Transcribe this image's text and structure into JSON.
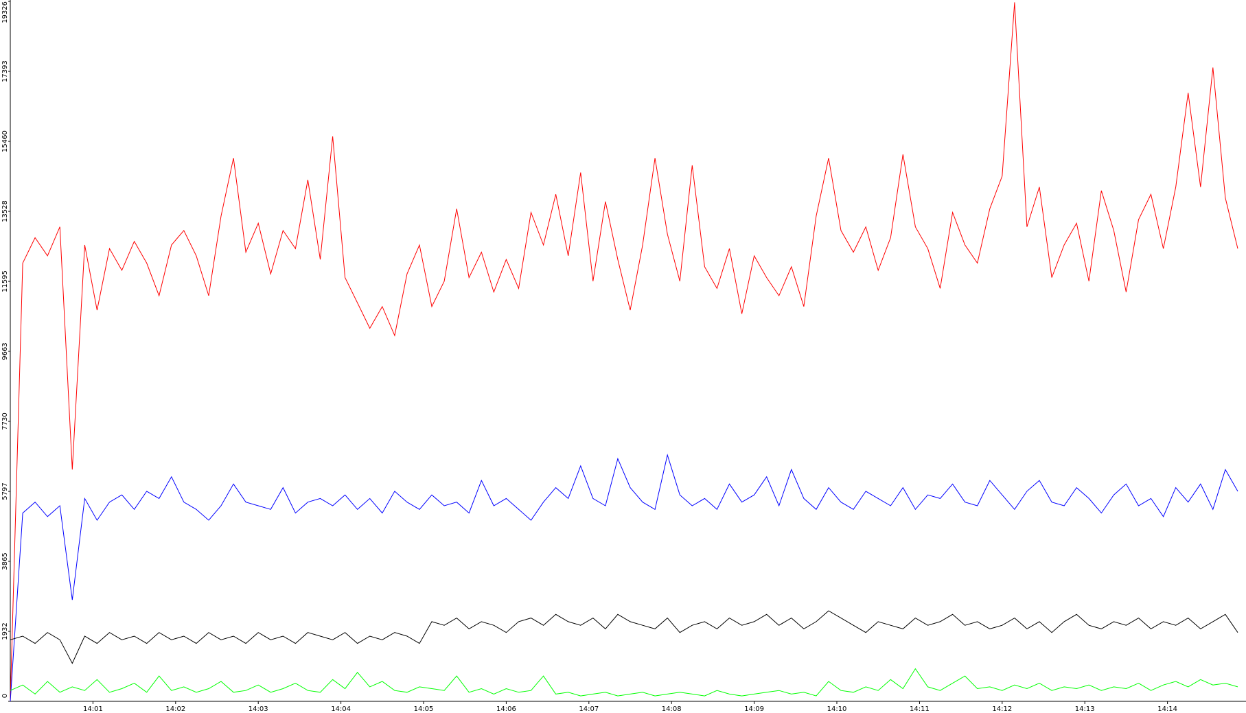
{
  "chart_data": {
    "type": "line",
    "x": [
      0,
      0.15,
      0.3,
      0.45,
      0.6,
      0.75,
      0.9,
      1.05,
      1.2,
      1.35,
      1.5,
      1.65,
      1.8,
      1.95,
      2.1,
      2.25,
      2.4,
      2.55,
      2.7,
      2.85,
      3,
      3.15,
      3.3,
      3.45,
      3.6,
      3.75,
      3.9,
      4.05,
      4.2,
      4.35,
      4.5,
      4.65,
      4.8,
      4.95,
      5.1,
      5.25,
      5.4,
      5.55,
      5.7,
      5.85,
      6,
      6.15,
      6.3,
      6.45,
      6.6,
      6.75,
      6.9,
      7.05,
      7.2,
      7.35,
      7.5,
      7.65,
      7.8,
      7.95,
      8.1,
      8.25,
      8.4,
      8.55,
      8.7,
      8.85,
      9,
      9.15,
      9.3,
      9.45,
      9.6,
      9.75,
      9.9,
      10.05,
      10.2,
      10.35,
      10.5,
      10.65,
      10.8,
      10.95,
      11.1,
      11.25,
      11.4,
      11.55,
      11.7,
      11.85,
      12,
      12.15,
      12.3,
      12.45,
      12.6,
      12.75,
      12.9,
      13.05,
      13.2,
      13.35,
      13.5,
      13.65,
      13.8,
      13.95,
      14.1,
      14.25,
      14.4,
      14.55,
      14.7,
      14.85
    ],
    "series": [
      {
        "color": "#ff0000",
        "values": [
          0,
          12100,
          12800,
          12300,
          13100,
          6400,
          12600,
          10800,
          12500,
          11900,
          12700,
          12100,
          11200,
          12600,
          13000,
          12300,
          11200,
          13400,
          15000,
          12400,
          13200,
          11800,
          13000,
          12500,
          14400,
          12200,
          15600,
          11700,
          11000,
          10300,
          10900,
          10100,
          11800,
          12600,
          10900,
          11600,
          13600,
          11700,
          12400,
          11300,
          12200,
          11400,
          13500,
          12600,
          14000,
          12300,
          14600,
          11600,
          13800,
          12200,
          10800,
          12600,
          15000,
          12900,
          11600,
          14800,
          12000,
          11400,
          12500,
          10700,
          12300,
          11700,
          11200,
          12000,
          10900,
          13400,
          15000,
          13000,
          12400,
          13100,
          11900,
          12800,
          15100,
          13100,
          12500,
          11400,
          13500,
          12600,
          12100,
          13600,
          14500,
          19300,
          13100,
          14200,
          11700,
          12600,
          13200,
          11600,
          14100,
          13000,
          11300,
          13300,
          14000,
          12500,
          14200,
          16800,
          14200,
          17500,
          13900,
          12500
        ]
      },
      {
        "color": "#0000ff",
        "values": [
          0,
          5200,
          5500,
          5100,
          5400,
          2800,
          5600,
          5000,
          5500,
          5700,
          5300,
          5800,
          5600,
          6200,
          5500,
          5300,
          5000,
          5400,
          6000,
          5500,
          5400,
          5300,
          5900,
          5200,
          5500,
          5600,
          5400,
          5700,
          5300,
          5600,
          5200,
          5800,
          5500,
          5300,
          5700,
          5400,
          5500,
          5200,
          6100,
          5400,
          5600,
          5300,
          5000,
          5500,
          5900,
          5600,
          6500,
          5600,
          5400,
          6700,
          5900,
          5500,
          5300,
          6800,
          5700,
          5400,
          5600,
          5300,
          6000,
          5500,
          5700,
          6200,
          5400,
          6400,
          5600,
          5300,
          5900,
          5500,
          5300,
          5800,
          5600,
          5400,
          5900,
          5300,
          5700,
          5600,
          6000,
          5500,
          5400,
          6100,
          5700,
          5300,
          5800,
          6100,
          5500,
          5400,
          5900,
          5600,
          5200,
          5700,
          6000,
          5400,
          5600,
          5100,
          5900,
          5500,
          6000,
          5300,
          6400,
          5800
        ]
      },
      {
        "color": "#000000",
        "values": [
          1700,
          1800,
          1600,
          1900,
          1700,
          1050,
          1800,
          1600,
          1900,
          1700,
          1800,
          1600,
          1900,
          1700,
          1800,
          1600,
          1900,
          1700,
          1800,
          1600,
          1900,
          1700,
          1800,
          1600,
          1900,
          1800,
          1700,
          1900,
          1600,
          1800,
          1700,
          1900,
          1800,
          1600,
          2200,
          2100,
          2300,
          2000,
          2200,
          2100,
          1900,
          2200,
          2300,
          2100,
          2400,
          2200,
          2100,
          2300,
          2000,
          2400,
          2200,
          2100,
          2000,
          2300,
          1900,
          2100,
          2200,
          2000,
          2300,
          2100,
          2200,
          2400,
          2100,
          2300,
          2000,
          2200,
          2500,
          2300,
          2100,
          1900,
          2200,
          2100,
          2000,
          2300,
          2100,
          2200,
          2400,
          2100,
          2200,
          2000,
          2100,
          2300,
          2000,
          2200,
          1900,
          2200,
          2400,
          2100,
          2000,
          2200,
          2100,
          2300,
          2000,
          2200,
          2100,
          2300,
          2000,
          2200,
          2400,
          1900
        ]
      },
      {
        "color": "#00ff00",
        "values": [
          300,
          450,
          200,
          550,
          250,
          400,
          300,
          600,
          250,
          350,
          500,
          250,
          700,
          300,
          400,
          250,
          350,
          550,
          250,
          300,
          450,
          250,
          350,
          500,
          300,
          250,
          600,
          350,
          800,
          400,
          550,
          300,
          250,
          400,
          350,
          300,
          700,
          250,
          350,
          200,
          350,
          250,
          300,
          700,
          200,
          250,
          150,
          200,
          250,
          150,
          200,
          250,
          150,
          200,
          250,
          200,
          150,
          300,
          200,
          150,
          200,
          250,
          300,
          200,
          250,
          150,
          550,
          300,
          250,
          400,
          300,
          600,
          350,
          900,
          400,
          300,
          500,
          700,
          350,
          400,
          300,
          450,
          350,
          500,
          300,
          400,
          350,
          450,
          300,
          400,
          350,
          500,
          300,
          450,
          550,
          400,
          600,
          450,
          500,
          400
        ]
      }
    ],
    "xlim": [
      0,
      14.95
    ],
    "xticks": [
      {
        "value": 1,
        "label": "14:01"
      },
      {
        "value": 2,
        "label": "14:02"
      },
      {
        "value": 3,
        "label": "14:03"
      },
      {
        "value": 4,
        "label": "14:04"
      },
      {
        "value": 5,
        "label": "14:05"
      },
      {
        "value": 6,
        "label": "14:06"
      },
      {
        "value": 7,
        "label": "14:07"
      },
      {
        "value": 8,
        "label": "14:08"
      },
      {
        "value": 9,
        "label": "14:09"
      },
      {
        "value": 10,
        "label": "14:10"
      },
      {
        "value": 11,
        "label": "14:11"
      },
      {
        "value": 12,
        "label": "14:12"
      },
      {
        "value": 13,
        "label": "14:13"
      },
      {
        "value": 14,
        "label": "14:14"
      }
    ],
    "ylim": [
      0,
      19326
    ],
    "yticks": [
      0,
      1932,
      3865,
      5797,
      7730,
      9663,
      11595,
      13528,
      15460,
      17393,
      19326
    ]
  }
}
